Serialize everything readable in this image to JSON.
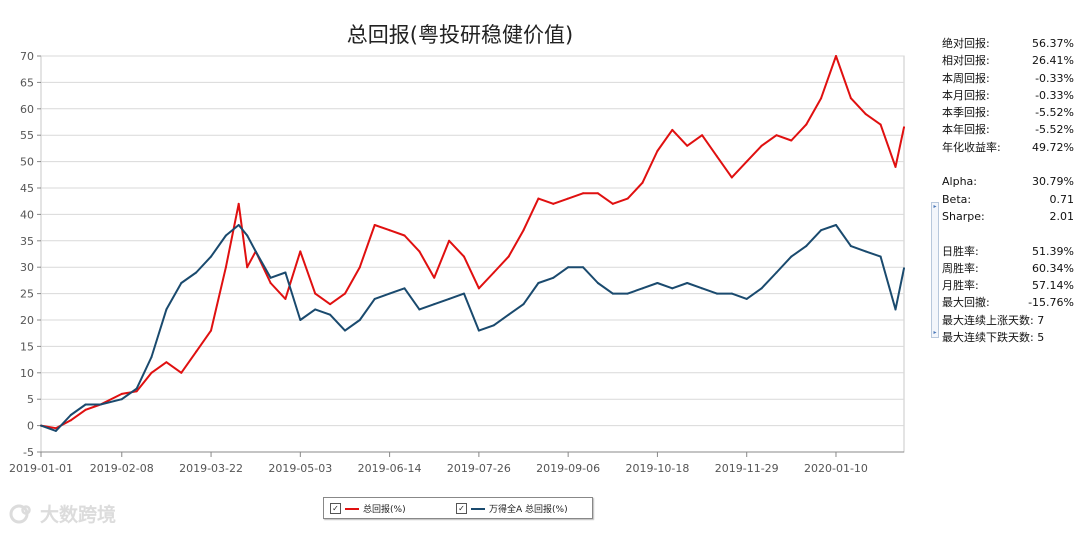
{
  "chart_data": {
    "type": "line",
    "title": "总回报(粤投研稳健价值)",
    "x_tick_labels": [
      "2019-01-01",
      "2019-02-08",
      "2019-03-22",
      "2019-05-03",
      "2019-06-14",
      "2019-07-26",
      "2019-09-06",
      "2019-10-18",
      "2019-11-29",
      "2020-01-10"
    ],
    "y_ticks": [
      -5,
      0,
      5,
      10,
      15,
      20,
      25,
      30,
      35,
      40,
      45,
      50,
      55,
      60,
      65,
      70
    ],
    "ylim": [
      -5,
      70
    ],
    "grid": true,
    "legend_position": "bottom",
    "x_dates": [
      "2019-01-01",
      "2019-01-08",
      "2019-01-15",
      "2019-01-22",
      "2019-01-29",
      "2019-02-08",
      "2019-02-15",
      "2019-02-22",
      "2019-03-01",
      "2019-03-08",
      "2019-03-15",
      "2019-03-22",
      "2019-03-29",
      "2019-04-04",
      "2019-04-08",
      "2019-04-12",
      "2019-04-19",
      "2019-04-26",
      "2019-05-03",
      "2019-05-10",
      "2019-05-17",
      "2019-05-24",
      "2019-05-31",
      "2019-06-07",
      "2019-06-14",
      "2019-06-21",
      "2019-06-28",
      "2019-07-05",
      "2019-07-12",
      "2019-07-19",
      "2019-07-26",
      "2019-08-02",
      "2019-08-09",
      "2019-08-16",
      "2019-08-23",
      "2019-08-30",
      "2019-09-06",
      "2019-09-13",
      "2019-09-20",
      "2019-09-27",
      "2019-10-04",
      "2019-10-11",
      "2019-10-18",
      "2019-10-25",
      "2019-11-01",
      "2019-11-08",
      "2019-11-15",
      "2019-11-22",
      "2019-11-29",
      "2019-12-06",
      "2019-12-13",
      "2019-12-20",
      "2019-12-27",
      "2020-01-03",
      "2020-01-10",
      "2020-01-17",
      "2020-01-24",
      "2020-01-31",
      "2020-02-07",
      "2020-02-11"
    ],
    "series": [
      {
        "name": "总回报(%)",
        "color": "#e01010",
        "values": [
          0,
          -0.5,
          1,
          3,
          4,
          6,
          6.5,
          10,
          12,
          10,
          14,
          18,
          30,
          42,
          30,
          33,
          27,
          24,
          33,
          25,
          23,
          25,
          30,
          38,
          37,
          36,
          33,
          28,
          35,
          32,
          26,
          29,
          32,
          37,
          43,
          42,
          43,
          44,
          44,
          42,
          43,
          46,
          52,
          56,
          53,
          55,
          51,
          47,
          50,
          53,
          55,
          54,
          57,
          62,
          70,
          62,
          59,
          57,
          49,
          56.5
        ]
      },
      {
        "name": "万得全A 总回报(%)",
        "color": "#1a4a6e",
        "values": [
          0,
          -1,
          2,
          4,
          4,
          5,
          7,
          13,
          22,
          27,
          29,
          32,
          36,
          38,
          36,
          33,
          28,
          29,
          20,
          22,
          21,
          18,
          20,
          24,
          25,
          26,
          22,
          23,
          24,
          25,
          18,
          19,
          21,
          23,
          27,
          28,
          30,
          30,
          27,
          25,
          25,
          26,
          27,
          26,
          27,
          26,
          25,
          25,
          24,
          26,
          29,
          32,
          34,
          37,
          38,
          34,
          33,
          32,
          22,
          29.8
        ]
      }
    ]
  },
  "stats": {
    "group1": [
      {
        "label": "绝对回报:",
        "value": "56.37%"
      },
      {
        "label": "相对回报:",
        "value": "26.41%"
      },
      {
        "label": "本周回报:",
        "value": "-0.33%"
      },
      {
        "label": "本月回报:",
        "value": "-0.33%"
      },
      {
        "label": "本季回报:",
        "value": "-5.52%"
      },
      {
        "label": "本年回报:",
        "value": "-5.52%"
      },
      {
        "label": "年化收益率:",
        "value": "49.72%"
      }
    ],
    "group2": [
      {
        "label": "Alpha:",
        "value": "30.79%"
      },
      {
        "label": "Beta:",
        "value": "0.71"
      },
      {
        "label": "Sharpe:",
        "value": "2.01"
      }
    ],
    "group3": [
      {
        "label": "日胜率:",
        "value": "51.39%"
      },
      {
        "label": "周胜率:",
        "value": "60.34%"
      },
      {
        "label": "月胜率:",
        "value": "57.14%"
      },
      {
        "label": "最大回撤:",
        "value": "-15.76%"
      },
      {
        "label": "最大连续上涨天数: 7",
        "value": ""
      },
      {
        "label": "最大连续下跌天数: 5",
        "value": ""
      }
    ]
  },
  "legend": {
    "items": [
      {
        "label": "总回报(%)",
        "color": "#e01010",
        "checked": true
      },
      {
        "label": "万得全A 总回报(%)",
        "color": "#1a4a6e",
        "checked": true
      }
    ]
  },
  "watermark": {
    "text": "大数跨境",
    "icon": "logo-swirl-icon"
  }
}
